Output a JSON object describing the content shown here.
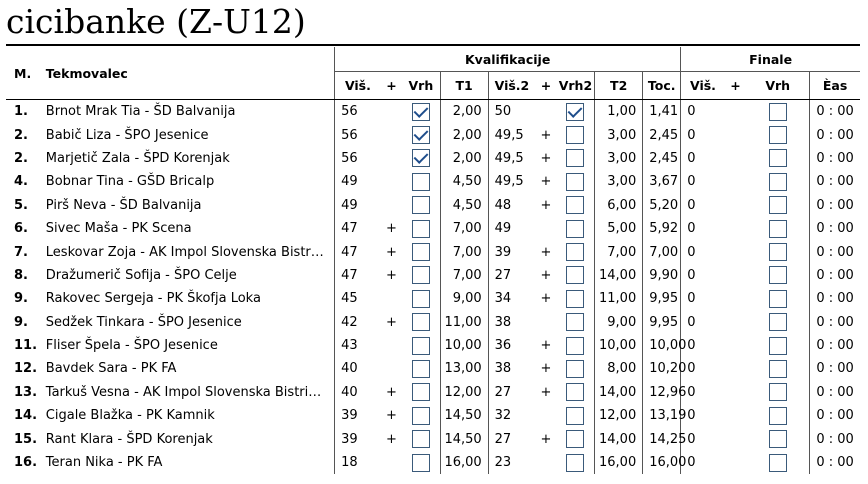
{
  "title": "cicibanke (Z-U12)",
  "header": {
    "rank_label": "M.",
    "competitor_label": "Tekmovalec",
    "qualification_label": "Kvalifikacije",
    "final_label": "Finale",
    "cols": {
      "vis": "Viš.",
      "plus": "+",
      "vrh": "Vrh",
      "t1": "T1",
      "vis2": "Viš.2",
      "plus2": "+",
      "vrh2": "Vrh2",
      "t2": "T2",
      "toc": "Toc.",
      "f_vis": "Viš.",
      "f_plus": "+",
      "f_vrh": "Vrh",
      "cas": "Èas"
    }
  },
  "rows": [
    {
      "rank": "1.",
      "name": "Brnot Mrak Tia - ŠD Balvanija",
      "vis": "56",
      "plus": "",
      "vrh": true,
      "t1": "2,00",
      "vis2": "50",
      "plus2": "",
      "vrh2": true,
      "t2": "1,00",
      "toc": "1,41",
      "fvis": "0",
      "fplus": "",
      "fvrh": false,
      "cas": "0 : 00"
    },
    {
      "rank": "2.",
      "name": "Babič Liza - ŠPO Jesenice",
      "vis": "56",
      "plus": "",
      "vrh": true,
      "t1": "2,00",
      "vis2": "49,5",
      "plus2": "+",
      "vrh2": false,
      "t2": "3,00",
      "toc": "2,45",
      "fvis": "0",
      "fplus": "",
      "fvrh": false,
      "cas": "0 : 00"
    },
    {
      "rank": "2.",
      "name": "Marjetič Zala - ŠPD Korenjak",
      "vis": "56",
      "plus": "",
      "vrh": true,
      "t1": "2,00",
      "vis2": "49,5",
      "plus2": "+",
      "vrh2": false,
      "t2": "3,00",
      "toc": "2,45",
      "fvis": "0",
      "fplus": "",
      "fvrh": false,
      "cas": "0 : 00"
    },
    {
      "rank": "4.",
      "name": "Bobnar Tina - GŠD Bricalp",
      "vis": "49",
      "plus": "",
      "vrh": false,
      "t1": "4,50",
      "vis2": "49,5",
      "plus2": "+",
      "vrh2": false,
      "t2": "3,00",
      "toc": "3,67",
      "fvis": "0",
      "fplus": "",
      "fvrh": false,
      "cas": "0 : 00"
    },
    {
      "rank": "5.",
      "name": "Pirš Neva - ŠD Balvanija",
      "vis": "49",
      "plus": "",
      "vrh": false,
      "t1": "4,50",
      "vis2": "48",
      "plus2": "+",
      "vrh2": false,
      "t2": "6,00",
      "toc": "5,20",
      "fvis": "0",
      "fplus": "",
      "fvrh": false,
      "cas": "0 : 00"
    },
    {
      "rank": "6.",
      "name": "Sivec Maša - PK Scena",
      "vis": "47",
      "plus": "+",
      "vrh": false,
      "t1": "7,00",
      "vis2": "49",
      "plus2": "",
      "vrh2": false,
      "t2": "5,00",
      "toc": "5,92",
      "fvis": "0",
      "fplus": "",
      "fvrh": false,
      "cas": "0 : 00"
    },
    {
      "rank": "7.",
      "name": "Leskovar Zoja - AK Impol Slovenska Bistr…",
      "vis": "47",
      "plus": "+",
      "vrh": false,
      "t1": "7,00",
      "vis2": "39",
      "plus2": "+",
      "vrh2": false,
      "t2": "7,00",
      "toc": "7,00",
      "fvis": "0",
      "fplus": "",
      "fvrh": false,
      "cas": "0 : 00"
    },
    {
      "rank": "8.",
      "name": "Dražumerič Sofija - ŠPO Celje",
      "vis": "47",
      "plus": "+",
      "vrh": false,
      "t1": "7,00",
      "vis2": "27",
      "plus2": "+",
      "vrh2": false,
      "t2": "14,00",
      "toc": "9,90",
      "fvis": "0",
      "fplus": "",
      "fvrh": false,
      "cas": "0 : 00"
    },
    {
      "rank": "9.",
      "name": "Rakovec Sergeja - PK Škofja Loka",
      "vis": "45",
      "plus": "",
      "vrh": false,
      "t1": "9,00",
      "vis2": "34",
      "plus2": "+",
      "vrh2": false,
      "t2": "11,00",
      "toc": "9,95",
      "fvis": "0",
      "fplus": "",
      "fvrh": false,
      "cas": "0 : 00"
    },
    {
      "rank": "9.",
      "name": "Sedžek Tinkara - ŠPO Jesenice",
      "vis": "42",
      "plus": "+",
      "vrh": false,
      "t1": "11,00",
      "vis2": "38",
      "plus2": "",
      "vrh2": false,
      "t2": "9,00",
      "toc": "9,95",
      "fvis": "0",
      "fplus": "",
      "fvrh": false,
      "cas": "0 : 00"
    },
    {
      "rank": "11.",
      "name": "Fliser Špela - ŠPO Jesenice",
      "vis": "43",
      "plus": "",
      "vrh": false,
      "t1": "10,00",
      "vis2": "36",
      "plus2": "+",
      "vrh2": false,
      "t2": "10,00",
      "toc": "10,00",
      "fvis": "0",
      "fplus": "",
      "fvrh": false,
      "cas": "0 : 00"
    },
    {
      "rank": "12.",
      "name": "Bavdek Sara - PK FA",
      "vis": "40",
      "plus": "",
      "vrh": false,
      "t1": "13,00",
      "vis2": "38",
      "plus2": "+",
      "vrh2": false,
      "t2": "8,00",
      "toc": "10,20",
      "fvis": "0",
      "fplus": "",
      "fvrh": false,
      "cas": "0 : 00"
    },
    {
      "rank": "13.",
      "name": "Tarkuš Vesna - AK Impol Slovenska Bistri…",
      "vis": "40",
      "plus": "+",
      "vrh": false,
      "t1": "12,00",
      "vis2": "27",
      "plus2": "+",
      "vrh2": false,
      "t2": "14,00",
      "toc": "12,96",
      "fvis": "0",
      "fplus": "",
      "fvrh": false,
      "cas": "0 : 00"
    },
    {
      "rank": "14.",
      "name": "Cigale Blažka - PK Kamnik",
      "vis": "39",
      "plus": "+",
      "vrh": false,
      "t1": "14,50",
      "vis2": "32",
      "plus2": "",
      "vrh2": false,
      "t2": "12,00",
      "toc": "13,19",
      "fvis": "0",
      "fplus": "",
      "fvrh": false,
      "cas": "0 : 00"
    },
    {
      "rank": "15.",
      "name": "Rant Klara - ŠPD Korenjak",
      "vis": "39",
      "plus": "+",
      "vrh": false,
      "t1": "14,50",
      "vis2": "27",
      "plus2": "+",
      "vrh2": false,
      "t2": "14,00",
      "toc": "14,25",
      "fvis": "0",
      "fplus": "",
      "fvrh": false,
      "cas": "0 : 00"
    },
    {
      "rank": "16.",
      "name": "Teran Nika - PK FA",
      "vis": "18",
      "plus": "",
      "vrh": false,
      "t1": "16,00",
      "vis2": "23",
      "plus2": "",
      "vrh2": false,
      "t2": "16,00",
      "toc": "16,00",
      "fvis": "0",
      "fplus": "",
      "fvrh": false,
      "cas": "0 : 00"
    }
  ]
}
